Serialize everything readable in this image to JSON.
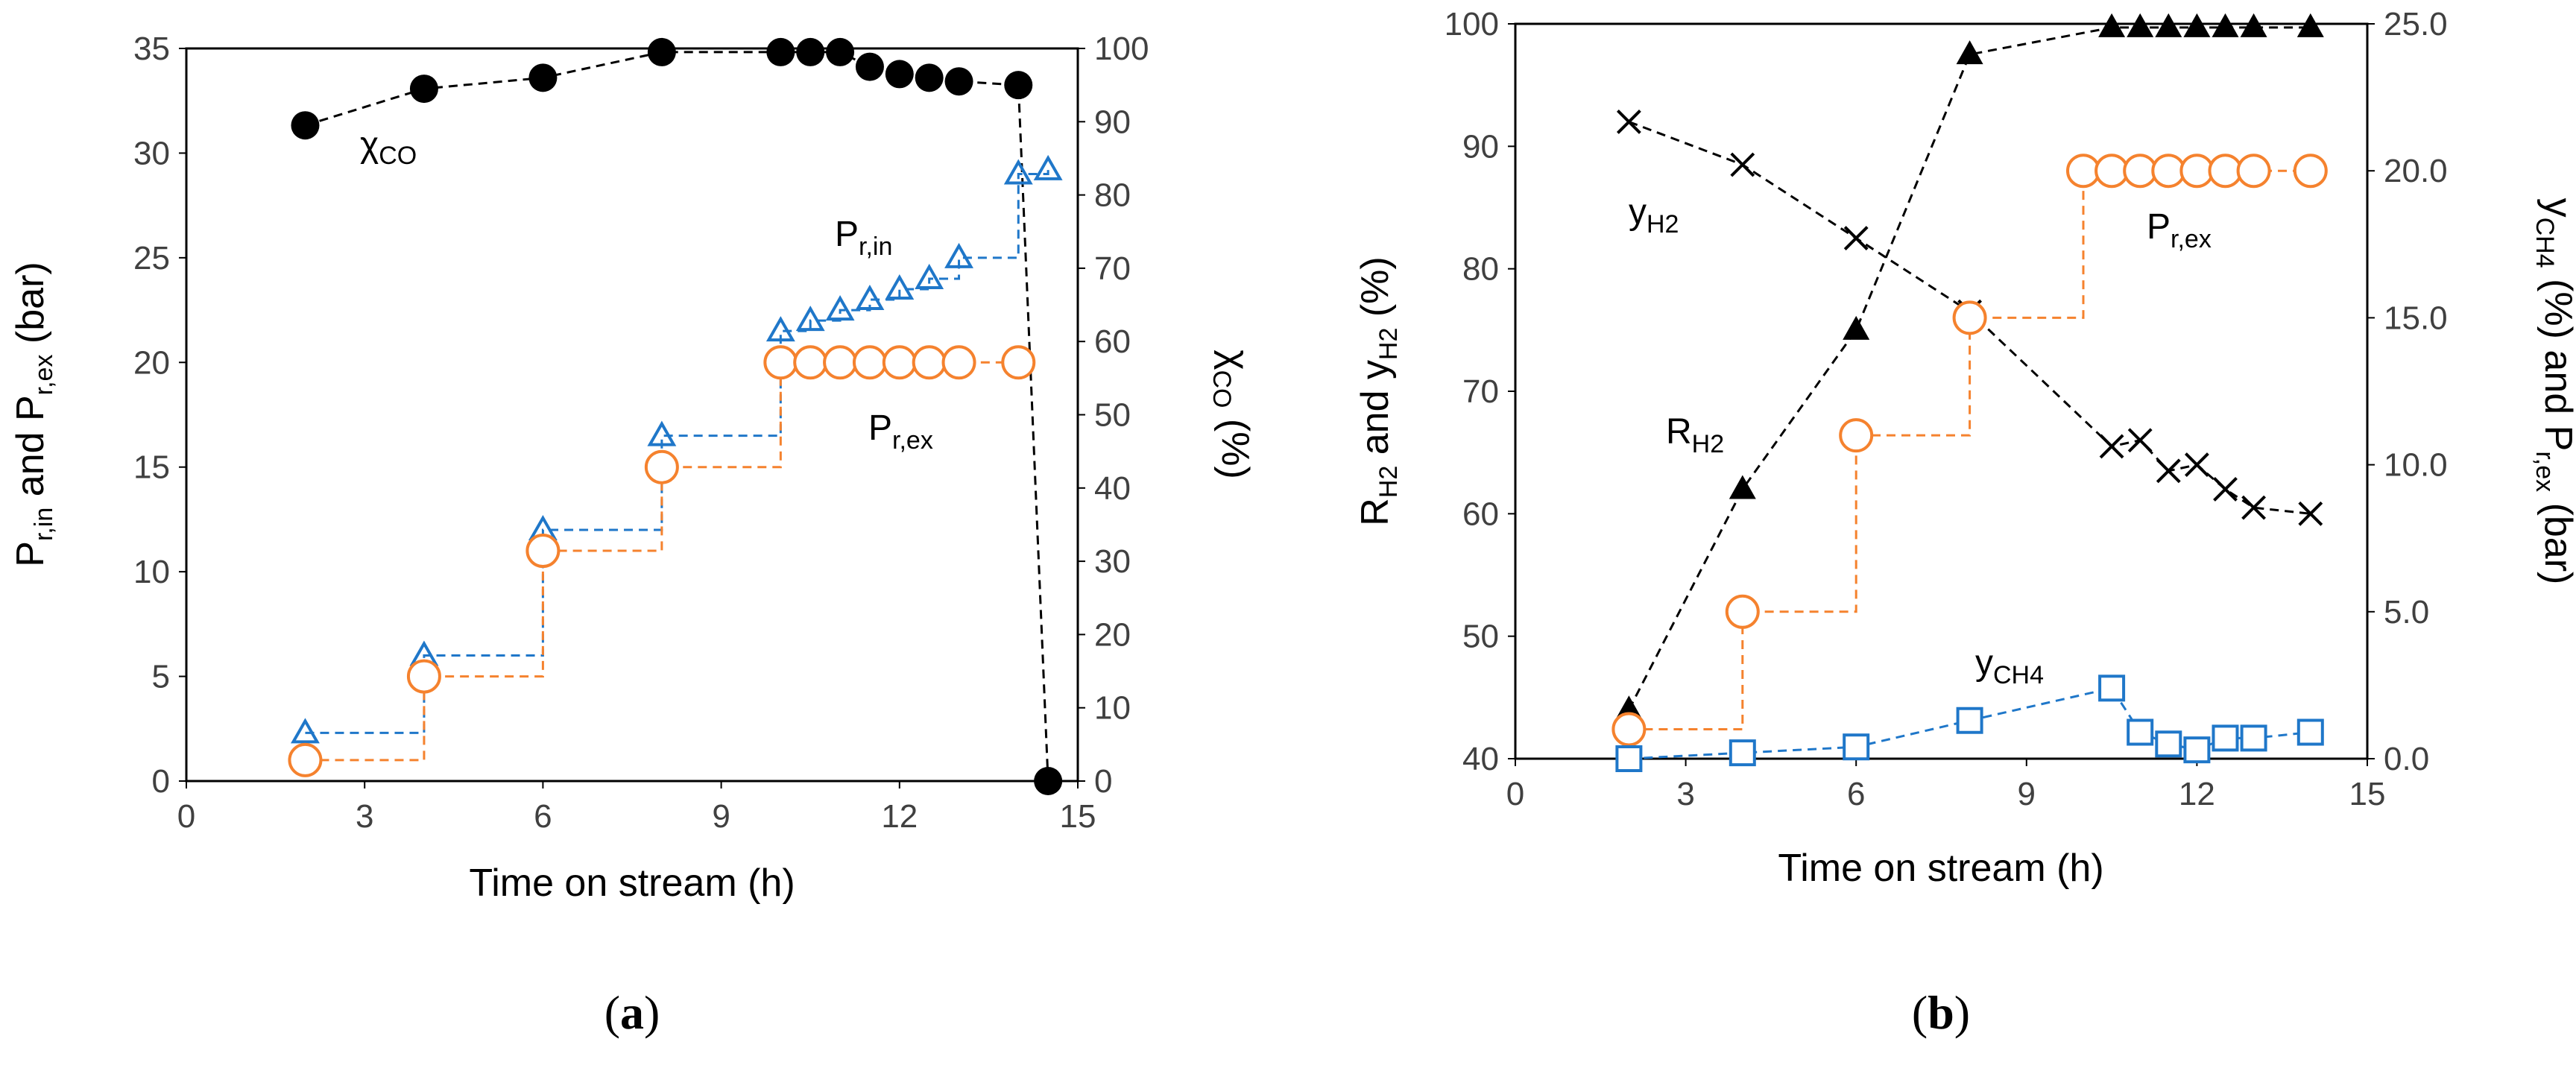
{
  "chart_data": [
    {
      "type": "line",
      "panel": "a",
      "caption": {
        "open": "(",
        "letter": "a",
        "close": ")"
      },
      "xlabel": "Time on stream (h)",
      "ylabel_left": {
        "p1": "P",
        "s1": "r,in",
        "p2": " and P",
        "s2": "r,ex",
        "p3": " (bar)"
      },
      "ylabel_right": {
        "p1": "χ",
        "s1": "CO",
        "p2": " (%)"
      },
      "xlim": [
        0,
        15
      ],
      "xticks": [
        0,
        3,
        6,
        9,
        12,
        15
      ],
      "ylim_left": [
        0,
        35
      ],
      "yticks_left": [
        0,
        5,
        10,
        15,
        20,
        25,
        30,
        35
      ],
      "ylim_right": [
        0,
        100
      ],
      "yticks_right": [
        0,
        10,
        20,
        30,
        40,
        50,
        60,
        70,
        80,
        90,
        100
      ],
      "series": [
        {
          "name": "χCO",
          "axis": "right",
          "marker": "filled-circle",
          "color": "#000000",
          "step": false,
          "x": [
            2,
            4,
            6,
            8,
            10,
            10.5,
            11,
            11.5,
            12,
            12.5,
            13,
            14,
            14.5
          ],
          "y": [
            89.5,
            94.5,
            96,
            99.5,
            99.5,
            99.5,
            99.5,
            97.5,
            96.5,
            96,
            95.5,
            95,
            0
          ]
        },
        {
          "name": "Pr,in",
          "axis": "left",
          "marker": "open-triangle",
          "color": "#1f77c9",
          "step": true,
          "x": [
            2,
            4,
            6,
            8,
            10,
            10.5,
            11,
            11.5,
            12,
            12.5,
            13,
            14,
            14.5
          ],
          "y": [
            2.3,
            6,
            12,
            16.5,
            21.5,
            22,
            22.5,
            23,
            23.5,
            24,
            25,
            29,
            29.2
          ]
        },
        {
          "name": "Pr,ex",
          "axis": "left",
          "marker": "open-circle",
          "color": "#f5822e",
          "step": true,
          "x": [
            2,
            4,
            6,
            8,
            10,
            10.5,
            11,
            11.5,
            12,
            12.5,
            13,
            14
          ],
          "y": [
            1,
            5,
            11,
            15,
            20,
            20,
            20,
            20,
            20,
            20,
            20,
            20
          ]
        }
      ],
      "annotations": [
        {
          "series": "χCO",
          "main": "χ",
          "sub": "CO"
        },
        {
          "series": "Pr,in",
          "main": "P",
          "sub": "r,in"
        },
        {
          "series": "Pr,ex",
          "main": "P",
          "sub": "r,ex"
        }
      ]
    },
    {
      "type": "line",
      "panel": "b",
      "caption": {
        "open": "(",
        "letter": "b",
        "close": ")"
      },
      "xlabel": "Time on stream (h)",
      "ylabel_left": {
        "p1": "R",
        "s1": "H2",
        "p2": " and y",
        "s2": "H2",
        "p3": " (%)"
      },
      "ylabel_right": {
        "p1": "y",
        "s1": "CH4",
        "p2": " (%) and P",
        "s2": "r,ex",
        "p3": " (bar)"
      },
      "xlim": [
        0,
        15
      ],
      "xticks": [
        0,
        3,
        6,
        9,
        12,
        15
      ],
      "ylim_left": [
        40,
        100
      ],
      "yticks_left": [
        40,
        50,
        60,
        70,
        80,
        90,
        100
      ],
      "ylim_right": [
        0,
        25
      ],
      "yticks_right": [
        "0.0",
        "5.0",
        "10.0",
        "15.0",
        "20.0",
        "25.0"
      ],
      "series": [
        {
          "name": "RH2",
          "axis": "left",
          "marker": "filled-triangle",
          "color": "#000000",
          "step": false,
          "x": [
            2,
            4,
            6,
            8,
            10.5,
            11,
            11.5,
            12,
            12.5,
            13,
            14
          ],
          "y": [
            44,
            62,
            75,
            97.5,
            99.7,
            99.7,
            99.7,
            99.7,
            99.7,
            99.7,
            99.7
          ]
        },
        {
          "name": "yH2",
          "axis": "left",
          "marker": "cross",
          "color": "#000000",
          "step": false,
          "x": [
            2,
            4,
            6,
            8,
            10.5,
            11,
            11.5,
            12,
            12.5,
            13,
            14
          ],
          "y": [
            92,
            88.5,
            82.5,
            76.5,
            65.5,
            66,
            63.5,
            64,
            62,
            60.5,
            60
          ]
        },
        {
          "name": "Pr,ex",
          "axis": "right",
          "marker": "open-circle",
          "color": "#f5822e",
          "step": true,
          "x": [
            2,
            4,
            6,
            8,
            10,
            10.5,
            11,
            11.5,
            12,
            12.5,
            13,
            14
          ],
          "y": [
            1,
            5,
            11,
            15,
            20,
            20,
            20,
            20,
            20,
            20,
            20,
            20
          ]
        },
        {
          "name": "yCH4",
          "axis": "right",
          "marker": "open-square",
          "color": "#1f77c9",
          "step": false,
          "x": [
            2,
            4,
            6,
            8,
            10.5,
            11,
            11.5,
            12,
            12.5,
            13,
            14
          ],
          "y": [
            0,
            0.2,
            0.4,
            1.3,
            2.4,
            0.9,
            0.5,
            0.3,
            0.7,
            0.7,
            0.9
          ]
        }
      ],
      "annotations": [
        {
          "series": "yH2",
          "main": "y",
          "sub": "H2"
        },
        {
          "series": "RH2",
          "main": "R",
          "sub": "H2"
        },
        {
          "series": "Pr,ex",
          "main": "P",
          "sub": "r,ex"
        },
        {
          "series": "yCH4",
          "main": "y",
          "sub": "CH4"
        }
      ]
    }
  ]
}
